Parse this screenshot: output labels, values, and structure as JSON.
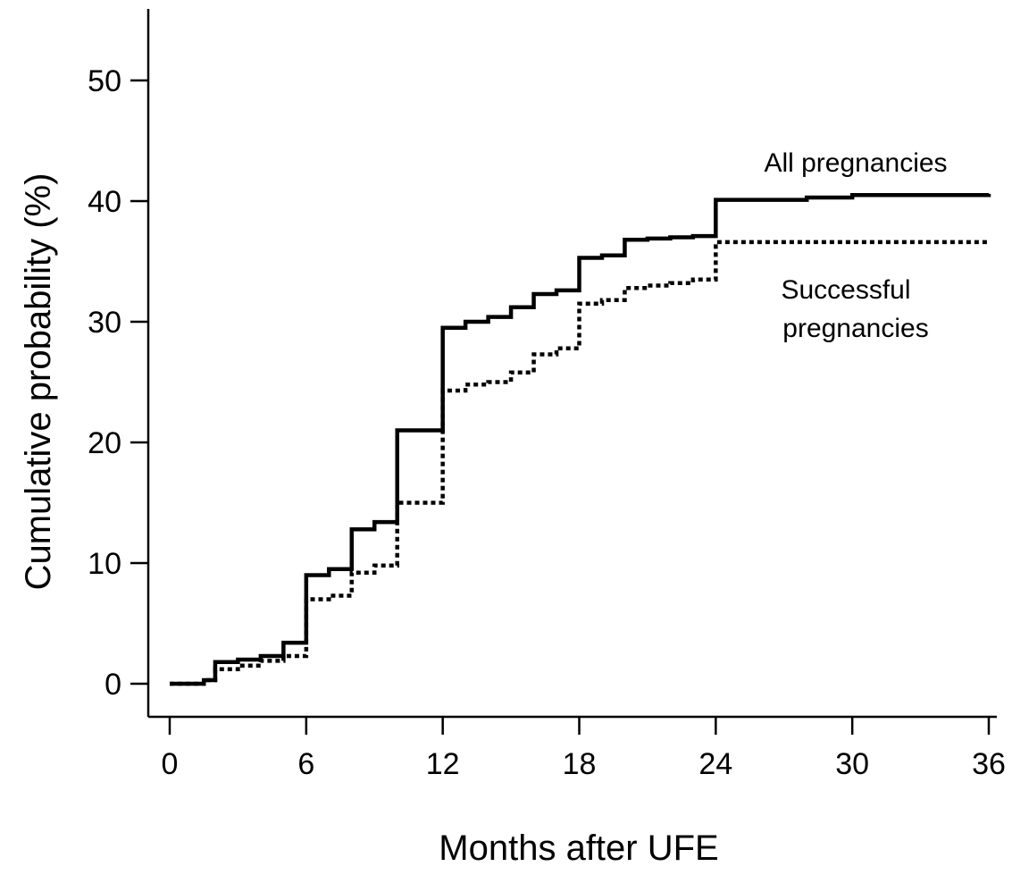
{
  "chart_data": {
    "type": "line",
    "step": true,
    "xlabel": "Months after UFE",
    "ylabel": "Cumulative probability (%)",
    "xlim": [
      0,
      36
    ],
    "ylim": [
      0,
      55
    ],
    "x_ticks": [
      0,
      6,
      12,
      18,
      24,
      30,
      36
    ],
    "x_tick_labels": [
      "0",
      "6",
      "12",
      "18",
      "24",
      "30",
      "36"
    ],
    "y_ticks": [
      0,
      10,
      20,
      30,
      40,
      50
    ],
    "y_tick_labels": [
      "0",
      "10",
      "20",
      "30",
      "40",
      "50"
    ],
    "grid": false,
    "annotations": [
      {
        "text": "All pregnancies",
        "series": "all"
      },
      {
        "text": "Successful",
        "series": "successful"
      },
      {
        "text": "pregnancies",
        "series": "successful"
      }
    ],
    "series": [
      {
        "id": "all",
        "style": "solid",
        "color": "#000000",
        "x": [
          0,
          1.5,
          2,
          3,
          4,
          5,
          6,
          7,
          8,
          9,
          10,
          12,
          13,
          14,
          15,
          16,
          17,
          18,
          19,
          20,
          21,
          22,
          23,
          24,
          28,
          30,
          36
        ],
        "y": [
          0,
          0.3,
          1.8,
          2.0,
          2.3,
          3.4,
          9.0,
          9.5,
          12.8,
          13.4,
          21.0,
          29.5,
          30.0,
          30.4,
          31.2,
          32.3,
          32.6,
          35.3,
          35.5,
          36.8,
          36.9,
          37.0,
          37.1,
          40.1,
          40.3,
          40.5,
          40.6
        ]
      },
      {
        "id": "successful",
        "style": "dotted",
        "color": "#000000",
        "x": [
          0,
          1.5,
          2,
          3,
          4,
          5,
          6,
          7,
          8,
          9,
          10,
          12,
          13,
          14,
          15,
          16,
          17,
          18,
          19,
          20,
          21,
          22,
          23,
          24,
          36
        ],
        "y": [
          0,
          0.3,
          1.2,
          1.5,
          1.9,
          2.3,
          7.0,
          7.3,
          9.2,
          9.8,
          15.0,
          24.3,
          24.8,
          25.0,
          25.8,
          27.3,
          27.8,
          31.5,
          31.8,
          32.8,
          33.0,
          33.2,
          33.5,
          36.6,
          36.6
        ]
      }
    ]
  }
}
